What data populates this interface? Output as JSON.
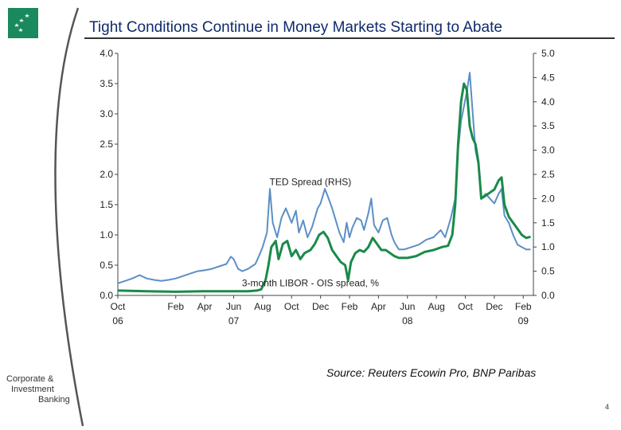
{
  "title": "Tight Conditions Continue in Money Markets Starting to Abate",
  "source": "Source: Reuters Ecowin Pro, BNP Paribas",
  "division": {
    "line1": "Corporate &",
    "line2": "Investment",
    "line3": "Banking"
  },
  "page_number": "4",
  "colors": {
    "ted": "#5b8fc7",
    "libor": "#1a8a4a",
    "brand": "#1a8a5e",
    "title": "#0f2a6b"
  },
  "chart_data": {
    "type": "line",
    "title": "Tight Conditions Continue in Money Markets Starting to Abate",
    "x_range": [
      0,
      28.7
    ],
    "x_ticks": [
      {
        "month": 0,
        "label": "Oct",
        "year": "06"
      },
      {
        "month": 4,
        "label": "Feb",
        "year": ""
      },
      {
        "month": 6,
        "label": "Apr",
        "year": ""
      },
      {
        "month": 8,
        "label": "Jun",
        "year": "07"
      },
      {
        "month": 10,
        "label": "Aug",
        "year": ""
      },
      {
        "month": 12,
        "label": "Oct",
        "year": ""
      },
      {
        "month": 14,
        "label": "Dec",
        "year": ""
      },
      {
        "month": 16,
        "label": "Feb",
        "year": ""
      },
      {
        "month": 18,
        "label": "Apr",
        "year": ""
      },
      {
        "month": 20,
        "label": "Jun",
        "year": "08"
      },
      {
        "month": 22,
        "label": "Aug",
        "year": ""
      },
      {
        "month": 24,
        "label": "Oct",
        "year": ""
      },
      {
        "month": 26,
        "label": "Dec",
        "year": ""
      },
      {
        "month": 28,
        "label": "Feb",
        "year": "09"
      }
    ],
    "y_left": {
      "range": [
        0,
        4.0
      ],
      "ticks": [
        "0.0",
        "0.5",
        "1.0",
        "1.5",
        "2.0",
        "2.5",
        "3.0",
        "3.5",
        "4.0"
      ]
    },
    "y_right": {
      "range": [
        0,
        5.0
      ],
      "ticks": [
        "0.0",
        "0.5",
        "1.0",
        "1.5",
        "2.0",
        "2.5",
        "3.0",
        "3.5",
        "4.0",
        "4.5",
        "5.0"
      ]
    },
    "annotations": [
      {
        "text": "TED Spread (RHS)",
        "x": 13.3,
        "y": 1.82
      },
      {
        "text": "3-month LIBOR - OIS spread, %",
        "x": 13.3,
        "y": 0.15
      }
    ],
    "series": [
      {
        "name": "TED Spread (RHS)",
        "axis": "right",
        "points": [
          [
            0,
            0.25
          ],
          [
            0.5,
            0.3
          ],
          [
            1,
            0.35
          ],
          [
            1.5,
            0.42
          ],
          [
            2,
            0.35
          ],
          [
            2.5,
            0.32
          ],
          [
            3,
            0.3
          ],
          [
            3.5,
            0.32
          ],
          [
            4,
            0.35
          ],
          [
            4.5,
            0.4
          ],
          [
            5,
            0.45
          ],
          [
            5.5,
            0.5
          ],
          [
            6,
            0.52
          ],
          [
            6.5,
            0.55
          ],
          [
            7,
            0.6
          ],
          [
            7.5,
            0.65
          ],
          [
            7.8,
            0.8
          ],
          [
            8,
            0.75
          ],
          [
            8.3,
            0.55
          ],
          [
            8.6,
            0.5
          ],
          [
            9,
            0.55
          ],
          [
            9.5,
            0.65
          ],
          [
            9.8,
            0.85
          ],
          [
            10,
            1.0
          ],
          [
            10.3,
            1.3
          ],
          [
            10.5,
            2.2
          ],
          [
            10.7,
            1.5
          ],
          [
            11,
            1.2
          ],
          [
            11.3,
            1.6
          ],
          [
            11.6,
            1.8
          ],
          [
            12,
            1.5
          ],
          [
            12.3,
            1.75
          ],
          [
            12.5,
            1.3
          ],
          [
            12.8,
            1.55
          ],
          [
            13.1,
            1.2
          ],
          [
            13.4,
            1.4
          ],
          [
            13.8,
            1.8
          ],
          [
            14,
            1.9
          ],
          [
            14.3,
            2.2
          ],
          [
            14.5,
            2.05
          ],
          [
            14.8,
            1.8
          ],
          [
            15,
            1.6
          ],
          [
            15.3,
            1.3
          ],
          [
            15.6,
            1.1
          ],
          [
            15.8,
            1.5
          ],
          [
            16,
            1.2
          ],
          [
            16.2,
            1.4
          ],
          [
            16.5,
            1.6
          ],
          [
            16.8,
            1.55
          ],
          [
            17,
            1.35
          ],
          [
            17.3,
            1.7
          ],
          [
            17.5,
            2.0
          ],
          [
            17.7,
            1.45
          ],
          [
            18,
            1.3
          ],
          [
            18.3,
            1.55
          ],
          [
            18.6,
            1.6
          ],
          [
            18.9,
            1.25
          ],
          [
            19.1,
            1.1
          ],
          [
            19.4,
            0.95
          ],
          [
            19.8,
            0.95
          ],
          [
            20.3,
            1.0
          ],
          [
            20.8,
            1.05
          ],
          [
            21.3,
            1.15
          ],
          [
            21.8,
            1.2
          ],
          [
            22.3,
            1.35
          ],
          [
            22.6,
            1.2
          ],
          [
            23,
            1.6
          ],
          [
            23.3,
            2.0
          ],
          [
            23.5,
            3.0
          ],
          [
            23.7,
            3.6
          ],
          [
            23.9,
            3.9
          ],
          [
            24.1,
            4.2
          ],
          [
            24.3,
            4.6
          ],
          [
            24.5,
            3.8
          ],
          [
            24.7,
            3.0
          ],
          [
            24.9,
            2.7
          ],
          [
            25.1,
            2.0
          ],
          [
            25.4,
            2.1
          ],
          [
            25.7,
            2.0
          ],
          [
            26,
            1.9
          ],
          [
            26.3,
            2.1
          ],
          [
            26.5,
            2.2
          ],
          [
            26.7,
            1.65
          ],
          [
            27,
            1.5
          ],
          [
            27.3,
            1.25
          ],
          [
            27.6,
            1.05
          ],
          [
            27.9,
            1.0
          ],
          [
            28.2,
            0.95
          ],
          [
            28.5,
            0.95
          ]
        ]
      },
      {
        "name": "3-month LIBOR - OIS spread, %",
        "axis": "left",
        "points": [
          [
            0,
            0.08
          ],
          [
            2,
            0.07
          ],
          [
            4,
            0.06
          ],
          [
            6,
            0.07
          ],
          [
            8,
            0.07
          ],
          [
            9,
            0.07
          ],
          [
            9.6,
            0.08
          ],
          [
            9.9,
            0.1
          ],
          [
            10.2,
            0.25
          ],
          [
            10.4,
            0.5
          ],
          [
            10.6,
            0.8
          ],
          [
            10.9,
            0.9
          ],
          [
            11.1,
            0.6
          ],
          [
            11.4,
            0.85
          ],
          [
            11.7,
            0.9
          ],
          [
            12,
            0.65
          ],
          [
            12.3,
            0.75
          ],
          [
            12.6,
            0.6
          ],
          [
            12.9,
            0.7
          ],
          [
            13.3,
            0.75
          ],
          [
            13.6,
            0.85
          ],
          [
            13.9,
            1.0
          ],
          [
            14.2,
            1.05
          ],
          [
            14.5,
            0.95
          ],
          [
            14.8,
            0.75
          ],
          [
            15.1,
            0.65
          ],
          [
            15.4,
            0.55
          ],
          [
            15.7,
            0.5
          ],
          [
            15.9,
            0.25
          ],
          [
            16.1,
            0.55
          ],
          [
            16.4,
            0.7
          ],
          [
            16.7,
            0.75
          ],
          [
            17,
            0.72
          ],
          [
            17.3,
            0.8
          ],
          [
            17.6,
            0.95
          ],
          [
            17.9,
            0.85
          ],
          [
            18.2,
            0.75
          ],
          [
            18.5,
            0.75
          ],
          [
            18.8,
            0.7
          ],
          [
            19.1,
            0.65
          ],
          [
            19.4,
            0.62
          ],
          [
            20,
            0.62
          ],
          [
            20.6,
            0.65
          ],
          [
            21.2,
            0.72
          ],
          [
            21.8,
            0.75
          ],
          [
            22.4,
            0.8
          ],
          [
            22.8,
            0.82
          ],
          [
            23.1,
            1.0
          ],
          [
            23.3,
            1.5
          ],
          [
            23.5,
            2.5
          ],
          [
            23.7,
            3.2
          ],
          [
            23.9,
            3.5
          ],
          [
            24.1,
            3.4
          ],
          [
            24.3,
            2.8
          ],
          [
            24.5,
            2.6
          ],
          [
            24.7,
            2.5
          ],
          [
            24.9,
            2.2
          ],
          [
            25.1,
            1.6
          ],
          [
            25.4,
            1.65
          ],
          [
            25.7,
            1.7
          ],
          [
            26,
            1.75
          ],
          [
            26.3,
            1.9
          ],
          [
            26.5,
            1.95
          ],
          [
            26.7,
            1.5
          ],
          [
            27,
            1.3
          ],
          [
            27.3,
            1.2
          ],
          [
            27.6,
            1.1
          ],
          [
            27.9,
            1.0
          ],
          [
            28.2,
            0.95
          ],
          [
            28.5,
            0.97
          ]
        ]
      }
    ]
  }
}
